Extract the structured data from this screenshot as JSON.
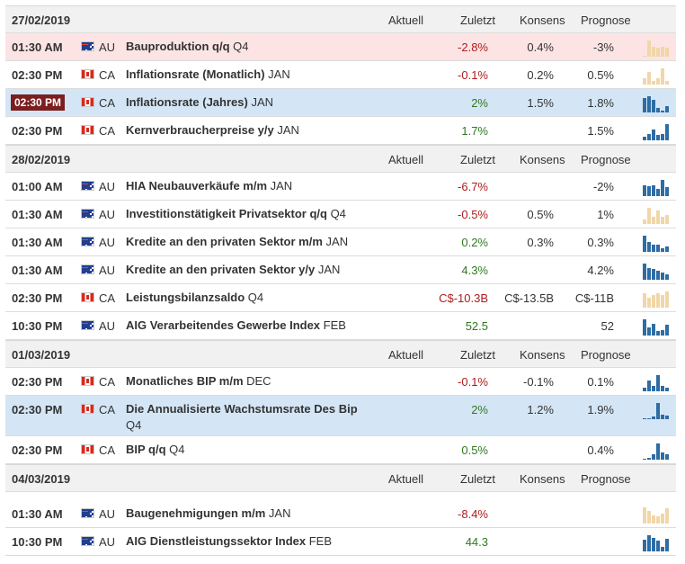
{
  "columns": {
    "aktuell": "Aktuell",
    "zuletzt": "Zuletzt",
    "konsens": "Konsens",
    "prognose": "Prognose"
  },
  "groups": [
    {
      "date": "27/02/2019",
      "events": [
        {
          "time": "01:30 AM",
          "country": "AU",
          "flag": "au",
          "name_bold": "Bauproduktion q/q",
          "name_plain": " Q4",
          "aktuell": "",
          "zuletzt": "-2.8%",
          "zuletzt_color": "neg",
          "konsens": "0.4%",
          "prognose": "-3%",
          "highlight": "red",
          "live": false,
          "tall": false,
          "spark": {
            "color": "#f1d6a8",
            "values": [
              0,
              15,
              9,
              8,
              9,
              8
            ]
          }
        },
        {
          "time": "02:30 PM",
          "country": "CA",
          "flag": "ca",
          "name_bold": "Inflationsrate (Monatlich)",
          "name_plain": " JAN",
          "aktuell": "",
          "zuletzt": "-0.1%",
          "zuletzt_color": "neg",
          "konsens": "0.2%",
          "prognose": "0.5%",
          "highlight": "",
          "live": false,
          "tall": false,
          "spark": {
            "color": "#f1d6a8",
            "values": [
              4,
              8,
              2,
              4,
              10,
              2
            ]
          }
        },
        {
          "time": "02:30 PM",
          "country": "CA",
          "flag": "ca",
          "name_bold": "Inflationsrate (Jahres)",
          "name_plain": " JAN",
          "aktuell": "",
          "zuletzt": "2%",
          "zuletzt_color": "pos",
          "konsens": "1.5%",
          "prognose": "1.8%",
          "highlight": "blue",
          "live": true,
          "tall": false,
          "spark": {
            "color": "#2e6ca4",
            "values": [
              14,
              16,
              12,
              4,
              2,
              6
            ]
          }
        },
        {
          "time": "02:30 PM",
          "country": "CA",
          "flag": "ca",
          "name_bold": "Kernverbraucherpreise y/y",
          "name_plain": " JAN",
          "aktuell": "",
          "zuletzt": "1.7%",
          "zuletzt_color": "pos",
          "konsens": "",
          "prognose": "1.5%",
          "highlight": "",
          "live": false,
          "tall": false,
          "spark": {
            "color": "#2e6ca4",
            "values": [
              3,
              5,
              9,
              4,
              5,
              13
            ]
          }
        }
      ]
    },
    {
      "date": "28/02/2019",
      "events": [
        {
          "time": "01:00 AM",
          "country": "AU",
          "flag": "au",
          "name_bold": "HIA Neubauverkäufe m/m",
          "name_plain": " JAN",
          "aktuell": "",
          "zuletzt": "-6.7%",
          "zuletzt_color": "neg",
          "konsens": "",
          "prognose": "-2%",
          "highlight": "",
          "live": false,
          "tall": false,
          "spark": {
            "color": "#2e6ca4",
            "values": [
              9,
              8,
              9,
              6,
              13,
              7
            ]
          }
        },
        {
          "time": "01:30 AM",
          "country": "AU",
          "flag": "au",
          "name_bold": "Investitionstätigkeit Privatsektor q/q",
          "name_plain": " Q4",
          "aktuell": "",
          "zuletzt": "-0.5%",
          "zuletzt_color": "neg",
          "konsens": "0.5%",
          "prognose": "1%",
          "highlight": "",
          "live": false,
          "tall": false,
          "spark": {
            "color": "#f1d6a8",
            "values": [
              2,
              7,
              3,
              6,
              3,
              4
            ]
          }
        },
        {
          "time": "01:30 AM",
          "country": "AU",
          "flag": "au",
          "name_bold": "Kredite an den privaten Sektor m/m",
          "name_plain": " JAN",
          "aktuell": "",
          "zuletzt": "0.2%",
          "zuletzt_color": "pos",
          "konsens": "0.3%",
          "prognose": "0.3%",
          "highlight": "",
          "live": false,
          "tall": false,
          "spark": {
            "color": "#2e6ca4",
            "values": [
              13,
              8,
              6,
              6,
              3,
              4
            ]
          }
        },
        {
          "time": "01:30 AM",
          "country": "AU",
          "flag": "au",
          "name_bold": "Kredite an den privaten Sektor y/y",
          "name_plain": " JAN",
          "aktuell": "",
          "zuletzt": "4.3%",
          "zuletzt_color": "pos",
          "konsens": "",
          "prognose": "4.2%",
          "highlight": "",
          "live": false,
          "tall": false,
          "spark": {
            "color": "#2e6ca4",
            "values": [
              14,
              10,
              9,
              8,
              6,
              5
            ]
          }
        },
        {
          "time": "02:30 PM",
          "country": "CA",
          "flag": "ca",
          "name_bold": "Leistungsbilanzsaldo",
          "name_plain": " Q4",
          "aktuell": "",
          "zuletzt": "C$-10.3B",
          "zuletzt_color": "neg",
          "konsens": "C$-13.5B",
          "prognose": "C$-11B",
          "highlight": "",
          "live": false,
          "tall": false,
          "spark": {
            "color": "#f1d6a8",
            "values": [
              14,
              10,
              12,
              14,
              12,
              16
            ]
          }
        },
        {
          "time": "10:30 PM",
          "country": "AU",
          "flag": "au",
          "name_bold": "AIG Verarbeitendes Gewerbe Index",
          "name_plain": " FEB",
          "aktuell": "",
          "zuletzt": "52.5",
          "zuletzt_color": "pos",
          "konsens": "",
          "prognose": "52",
          "highlight": "",
          "live": false,
          "tall": false,
          "spark": {
            "color": "#2e6ca4",
            "values": [
              14,
              7,
              10,
              4,
              5,
              9
            ]
          }
        }
      ]
    },
    {
      "date": "01/03/2019",
      "events": [
        {
          "time": "02:30 PM",
          "country": "CA",
          "flag": "ca",
          "name_bold": "Monatliches BIP m/m",
          "name_plain": " DEC",
          "aktuell": "",
          "zuletzt": "-0.1%",
          "zuletzt_color": "neg",
          "konsens": "-0.1%",
          "prognose": "0.1%",
          "highlight": "",
          "live": false,
          "tall": false,
          "spark": {
            "color": "#2e6ca4",
            "values": [
              2,
              6,
              3,
              9,
              3,
              2
            ]
          }
        },
        {
          "time": "02:30 PM",
          "country": "CA",
          "flag": "ca",
          "name_bold": "Die Annualisierte Wachstumsrate Des Bip",
          "name_plain": " Q4",
          "aktuell": "",
          "zuletzt": "2%",
          "zuletzt_color": "pos",
          "konsens": "1.2%",
          "prognose": "1.9%",
          "highlight": "blue",
          "live": false,
          "tall": true,
          "spark": {
            "color": "#2e6ca4",
            "values": [
              0,
              0,
              2,
              14,
              4,
              3
            ]
          }
        },
        {
          "time": "02:30 PM",
          "country": "CA",
          "flag": "ca",
          "name_bold": "BIP q/q",
          "name_plain": " Q4",
          "aktuell": "",
          "zuletzt": "0.5%",
          "zuletzt_color": "pos",
          "konsens": "",
          "prognose": "0.4%",
          "highlight": "",
          "live": false,
          "tall": false,
          "spark": {
            "color": "#2e6ca4",
            "values": [
              0,
              2,
              6,
              18,
              8,
              6
            ]
          }
        }
      ]
    },
    {
      "date": "04/03/2019",
      "events": [
        {
          "time": "01:30 AM",
          "country": "AU",
          "flag": "au",
          "name_bold": "Baugenehmigungen m/m",
          "name_plain": " JAN",
          "aktuell": "",
          "zuletzt": "-8.4%",
          "zuletzt_color": "neg",
          "konsens": "",
          "prognose": "",
          "highlight": "",
          "live": false,
          "tall": false,
          "spark": {
            "color": "#f1d6a8",
            "values": [
              12,
              9,
              6,
              5,
              7,
              11
            ]
          }
        },
        {
          "time": "10:30 PM",
          "country": "AU",
          "flag": "au",
          "name_bold": "AIG Dienstleistungssektor Index",
          "name_plain": " FEB",
          "aktuell": "",
          "zuletzt": "44.3",
          "zuletzt_color": "pos",
          "konsens": "",
          "prognose": "",
          "highlight": "",
          "live": false,
          "tall": false,
          "spark": {
            "color": "#2e6ca4",
            "values": [
              10,
              14,
              12,
              9,
              4,
              11
            ]
          }
        }
      ]
    }
  ]
}
